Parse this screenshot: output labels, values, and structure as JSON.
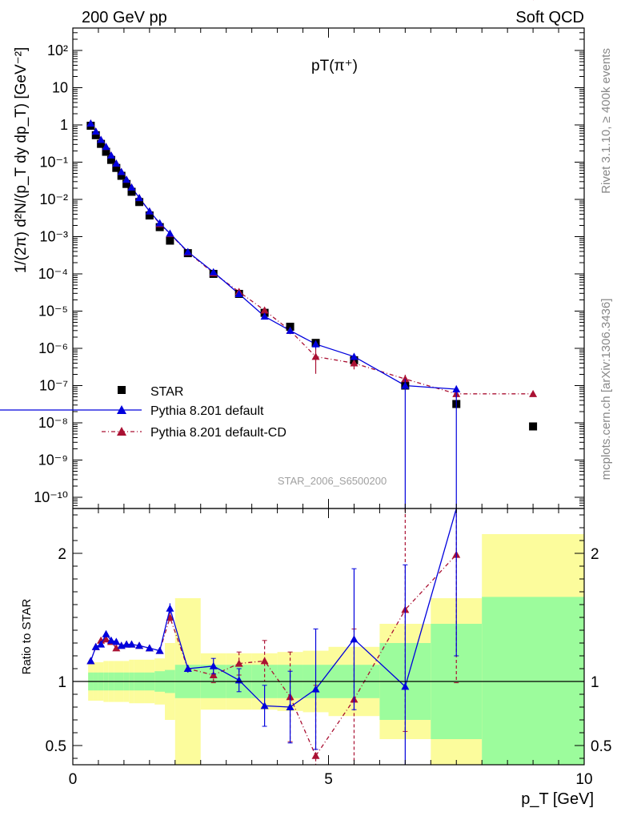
{
  "header": {
    "left": "200 GeV pp",
    "right": "Soft QCD",
    "side_top": "Rivet 3.1.10, ≥ 400k events",
    "side_bottom": "mcplots.cern.ch [arXiv:1306.3436]"
  },
  "chart_data": {
    "type": "scatter",
    "title": "pT(π⁺)",
    "analysis_label": "STAR_2006_S6500200",
    "xlabel": "p_T [GeV]",
    "ylabel": "1/(2π) d²N/(p_T dy dp_T) [GeV⁻²]",
    "ratio_ylabel": "Ratio to STAR",
    "xlim": [
      0,
      10
    ],
    "ylim_log": [
      5e-11,
      400
    ],
    "ratio_ylim": [
      0.35,
      2.35
    ],
    "x_ticks": [
      "0",
      "5",
      "10"
    ],
    "y_ticks": [
      "10⁻¹⁰",
      "10⁻⁹",
      "10⁻⁸",
      "10⁻⁷",
      "10⁻⁶",
      "10⁻⁵",
      "10⁻⁴",
      "10⁻³",
      "10⁻²",
      "10⁻¹",
      "1",
      "10",
      "10²"
    ],
    "ratio_ticks": [
      "0.5",
      "1",
      "2"
    ],
    "legend_position": "lower-left",
    "legend": [
      "STAR",
      "Pythia 8.201 default",
      "Pythia 8.201 default-CD"
    ],
    "colors": {
      "star": "#000000",
      "default": "#0000dd",
      "cd": "#aa1133",
      "band_inner": "#9cfc9c",
      "band_outer": "#fcfc9c"
    },
    "series": [
      {
        "name": "STAR",
        "x": [
          0.35,
          0.45,
          0.55,
          0.65,
          0.75,
          0.85,
          0.95,
          1.05,
          1.15,
          1.3,
          1.5,
          1.7,
          1.9,
          2.25,
          2.75,
          3.25,
          3.75,
          4.25,
          4.75,
          5.5,
          6.5,
          7.5,
          9.0
        ],
        "y": [
          0.95,
          0.53,
          0.31,
          0.19,
          0.115,
          0.07,
          0.043,
          0.026,
          0.016,
          0.0085,
          0.0037,
          0.0018,
          0.00078,
          0.00036,
          0.0001,
          2.9e-05,
          9e-06,
          3.8e-06,
          1.4e-06,
          4.8e-07,
          1e-07,
          3.2e-08,
          8e-09
        ]
      },
      {
        "name": "Pythia 8.201 default",
        "x": [
          0.35,
          0.45,
          0.55,
          0.65,
          0.75,
          0.85,
          0.95,
          1.05,
          1.15,
          1.3,
          1.5,
          1.7,
          1.9,
          2.25,
          2.75,
          3.25,
          3.75,
          4.25,
          4.75,
          5.5,
          6.5,
          7.5
        ],
        "y": [
          1.1,
          0.67,
          0.4,
          0.26,
          0.152,
          0.092,
          0.055,
          0.034,
          0.021,
          0.011,
          0.0048,
          0.0023,
          0.00122,
          0.00039,
          0.000112,
          2.9e-05,
          7.2e-06,
          3e-06,
          1.3e-06,
          6e-07,
          1e-07,
          8e-08
        ],
        "ratio": [
          1.16,
          1.27,
          1.29,
          1.37,
          1.32,
          1.31,
          1.28,
          1.29,
          1.29,
          1.28,
          1.26,
          1.24,
          1.57,
          1.1,
          1.12,
          1.01,
          0.81,
          0.8,
          0.94,
          1.33,
          0.96,
          2.4
        ],
        "ratio_err": [
          0.02,
          0.02,
          0.02,
          0.02,
          0.02,
          0.02,
          0.02,
          0.02,
          0.02,
          0.02,
          0.02,
          0.02,
          0.04,
          0.03,
          0.06,
          0.09,
          0.16,
          0.28,
          0.47,
          0.55,
          0.95,
          1.2
        ]
      },
      {
        "name": "Pythia 8.201 default-CD",
        "x": [
          0.35,
          0.45,
          0.55,
          0.65,
          0.75,
          0.85,
          0.95,
          1.05,
          1.15,
          1.3,
          1.5,
          1.7,
          1.9,
          2.25,
          2.75,
          3.25,
          3.75,
          4.25,
          4.75,
          5.5,
          6.5,
          7.5,
          9.0
        ],
        "y": [
          1.1,
          0.67,
          0.4,
          0.26,
          0.152,
          0.092,
          0.055,
          0.034,
          0.021,
          0.011,
          0.0048,
          0.0022,
          0.00118,
          0.00038,
          0.000105,
          3.3e-05,
          1.05e-05,
          3e-06,
          6e-07,
          4e-07,
          1.5e-07,
          6e-08,
          6e-08
        ],
        "ratio": [
          1.16,
          1.27,
          1.32,
          1.33,
          1.31,
          1.26,
          1.28,
          1.29,
          1.29,
          1.28,
          1.26,
          1.24,
          1.5,
          1.1,
          1.05,
          1.14,
          1.16,
          0.88,
          0.42,
          0.86,
          1.56,
          1.99
        ],
        "ratio_err": [
          0.02,
          0.02,
          0.02,
          0.02,
          0.02,
          0.02,
          0.02,
          0.02,
          0.02,
          0.02,
          0.02,
          0.02,
          0.04,
          0.03,
          0.06,
          0.09,
          0.16,
          0.35,
          0.55,
          0.55,
          0.95,
          1.0
        ]
      }
    ],
    "ratio_bands": {
      "bin_edges": [
        0.3,
        0.4,
        0.5,
        0.6,
        0.7,
        0.8,
        0.9,
        1.0,
        1.1,
        1.2,
        1.4,
        1.6,
        1.8,
        2.0,
        2.5,
        3.0,
        3.5,
        4.0,
        4.5,
        5.0,
        6.0,
        7.0,
        8.0,
        10.0
      ],
      "inner": [
        0.07,
        0.07,
        0.07,
        0.07,
        0.07,
        0.07,
        0.07,
        0.07,
        0.07,
        0.07,
        0.07,
        0.08,
        0.09,
        0.13,
        0.13,
        0.13,
        0.13,
        0.13,
        0.13,
        0.13,
        0.3,
        0.45,
        0.66
      ],
      "outer": [
        0.15,
        0.15,
        0.15,
        0.16,
        0.16,
        0.16,
        0.16,
        0.16,
        0.17,
        0.17,
        0.17,
        0.18,
        0.3,
        0.65,
        0.22,
        0.22,
        0.22,
        0.23,
        0.24,
        0.27,
        0.45,
        0.65,
        1.15
      ]
    }
  }
}
